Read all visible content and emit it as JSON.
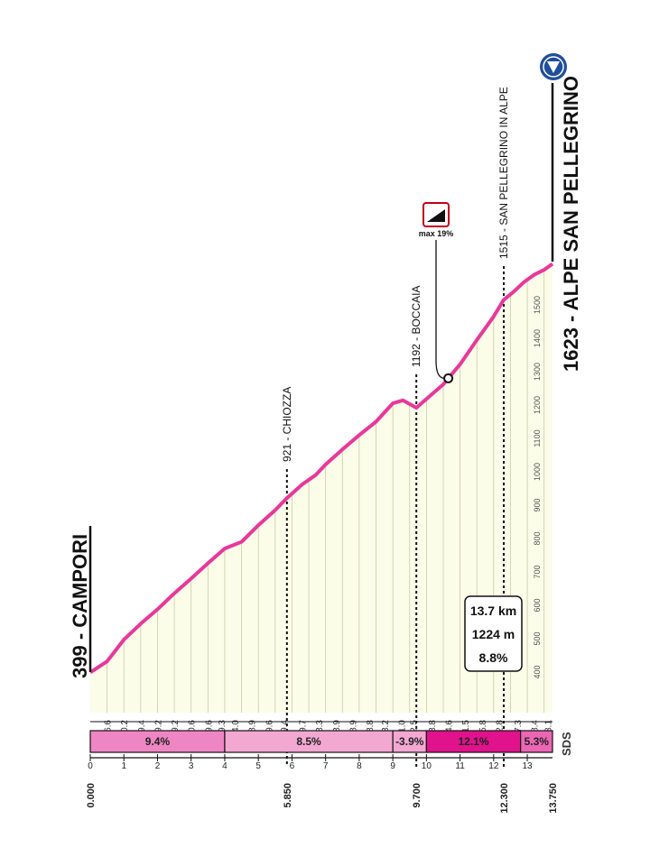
{
  "start": {
    "label": "399 - CAMPORI"
  },
  "finish": {
    "label": "1623 - ALPE SAN PELLEGRINO"
  },
  "stats": {
    "distance": "13.7 km",
    "gain": "1224 m",
    "avg": "8.8%"
  },
  "max_badge": {
    "label": "max 19%"
  },
  "sds_label": "SDS",
  "colors": {
    "profile_line": "#e8389a",
    "area_fill": "#fbfde9",
    "grid_line": "#c8cba8",
    "seg_pink": "#ee86c4",
    "seg_light": "#f3a8d2",
    "seg_magenta": "#e0128c",
    "seg_mid": "#ec66b4",
    "finish_circle": "#1f4e9b"
  },
  "chart_data": {
    "type": "area",
    "orientation": "rotated-90",
    "xlabel": "km",
    "ylabel": "m",
    "xlim": [
      0,
      13.75
    ],
    "ylim": [
      380,
      1650
    ],
    "y_ticks": [
      400,
      500,
      600,
      700,
      800,
      900,
      1000,
      1100,
      1200,
      1300,
      1400,
      1500
    ],
    "km_ticks": [
      {
        "x": 0,
        "label": "0"
      },
      {
        "x": 1,
        "label": "1"
      },
      {
        "x": 2,
        "label": "2"
      },
      {
        "x": 3,
        "label": "3"
      },
      {
        "x": 4,
        "label": "4"
      },
      {
        "x": 5,
        "label": "5"
      },
      {
        "x": 6,
        "label": "6"
      },
      {
        "x": 7,
        "label": "7"
      },
      {
        "x": 8,
        "label": "8"
      },
      {
        "x": 9,
        "label": "9"
      },
      {
        "x": 10,
        "label": "10"
      },
      {
        "x": 11,
        "label": "11"
      },
      {
        "x": 12,
        "label": "12"
      },
      {
        "x": 13,
        "label": "13"
      }
    ],
    "distance_marks": [
      {
        "x": 0,
        "label": "0.000"
      },
      {
        "x": 5.85,
        "label": "5.850"
      },
      {
        "x": 9.7,
        "label": "9.700"
      },
      {
        "x": 12.3,
        "label": "12.300"
      },
      {
        "x": 13.75,
        "label": "13.750"
      }
    ],
    "profile": [
      [
        0,
        399
      ],
      [
        0.5,
        432
      ],
      [
        1,
        497
      ],
      [
        1.5,
        545
      ],
      [
        2,
        588
      ],
      [
        2.5,
        636
      ],
      [
        3,
        680
      ],
      [
        3.5,
        726
      ],
      [
        4,
        770
      ],
      [
        4.5,
        790
      ],
      [
        5,
        840
      ],
      [
        5.5,
        885
      ],
      [
        5.85,
        921
      ],
      [
        6.3,
        962
      ],
      [
        6.7,
        990
      ],
      [
        7,
        1022
      ],
      [
        7.5,
        1067
      ],
      [
        8,
        1110
      ],
      [
        8.5,
        1150
      ],
      [
        9,
        1205
      ],
      [
        9.3,
        1214
      ],
      [
        9.7,
        1192
      ],
      [
        10,
        1218
      ],
      [
        10.5,
        1262
      ],
      [
        11,
        1322
      ],
      [
        11.5,
        1395
      ],
      [
        12,
        1465
      ],
      [
        12.3,
        1515
      ],
      [
        12.6,
        1540
      ],
      [
        12.9,
        1568
      ],
      [
        13.2,
        1590
      ],
      [
        13.5,
        1605
      ],
      [
        13.75,
        1623
      ]
    ],
    "gradients": [
      {
        "x": 0.5,
        "label": "6.6"
      },
      {
        "x": 1,
        "label": "10.2"
      },
      {
        "x": 1.5,
        "label": "9.4"
      },
      {
        "x": 2,
        "label": "9.2"
      },
      {
        "x": 2.5,
        "label": "9.2"
      },
      {
        "x": 3,
        "label": "10.6"
      },
      {
        "x": 3.5,
        "label": "9.6"
      },
      {
        "x": 3.9,
        "label": "9.3"
      },
      {
        "x": 4.3,
        "label": "4.0"
      },
      {
        "x": 4.8,
        "label": "8.9"
      },
      {
        "x": 5.3,
        "label": "9.6"
      },
      {
        "x": 5.75,
        "label": "9.4"
      },
      {
        "x": 6.3,
        "label": "9.7"
      },
      {
        "x": 6.8,
        "label": "8.3"
      },
      {
        "x": 7.3,
        "label": "8.9"
      },
      {
        "x": 7.8,
        "label": "8.9"
      },
      {
        "x": 8.3,
        "label": "8.8"
      },
      {
        "x": 8.75,
        "label": "8.2"
      },
      {
        "x": 9.25,
        "label": "1.0"
      },
      {
        "x": 9.6,
        "label": "2.5"
      },
      {
        "x": 10.15,
        "label": "8.8"
      },
      {
        "x": 10.65,
        "label": "14.6"
      },
      {
        "x": 11.15,
        "label": "11.5"
      },
      {
        "x": 11.65,
        "label": "15.8"
      },
      {
        "x": 12.15,
        "label": "12.8"
      },
      {
        "x": 12.7,
        "label": "7.3"
      },
      {
        "x": 13.2,
        "label": "8.4"
      },
      {
        "x": 13.6,
        "label": "3.1"
      }
    ],
    "segments": [
      {
        "from": 0,
        "to": 4,
        "label": "9.4%",
        "color": "#ee86c4"
      },
      {
        "from": 4,
        "to": 9,
        "label": "8.5%",
        "color": "#f3a8d2"
      },
      {
        "from": 9,
        "to": 10,
        "label": "-3.9%",
        "color": "#f3a8d2"
      },
      {
        "from": 10,
        "to": 12.8,
        "label": "12.1%",
        "color": "#e0128c"
      },
      {
        "from": 12.8,
        "to": 13.75,
        "label": "5.3%",
        "color": "#ec66b4"
      }
    ],
    "waypoints": [
      {
        "x": 5.85,
        "label": "921 - CHIOZZA"
      },
      {
        "x": 9.7,
        "label": "1192 - BOCCAIA"
      },
      {
        "x": 12.3,
        "label": "1515 - SAN PELLEGRINO IN ALPE"
      }
    ],
    "max_gradient_point": {
      "x": 10.65,
      "y": 1280
    }
  }
}
